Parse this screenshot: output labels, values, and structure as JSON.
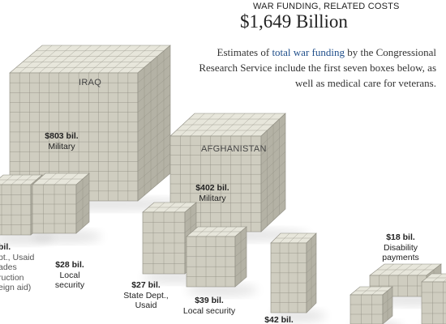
{
  "header": {
    "kicker": "WAR FUNDING, RELATED COSTS",
    "total": "$1,649 Billion",
    "desc_before": "Estimates of ",
    "desc_link": "total war funding",
    "desc_after": " by the Congressional Research Service include the first seven boxes below, as well as medical care for veterans."
  },
  "regions": {
    "iraq": "IRAQ",
    "afghanistan": "AFGHANISTAN"
  },
  "boxes": [
    {
      "id": "iraq-military",
      "amount": "$803 bil.",
      "lines": [
        "Military"
      ]
    },
    {
      "id": "afghan-military",
      "amount": "$402 bil.",
      "lines": [
        "Military"
      ]
    },
    {
      "id": "iraq-state",
      "amount": "bil.",
      "lines": [
        "pt., Usaid",
        "ades",
        "ruction",
        "eign aid)"
      ]
    },
    {
      "id": "iraq-local-security",
      "amount": "$28 bil.",
      "lines": [
        "Local",
        "security"
      ]
    },
    {
      "id": "afghan-state",
      "amount": "$27 bil.",
      "lines": [
        "State Dept.,",
        "Usaid"
      ]
    },
    {
      "id": "afghan-local-security",
      "amount": "$39 bil.",
      "lines": [
        "Local security"
      ]
    },
    {
      "id": "afghan-other",
      "amount": "$42 bil.",
      "lines": []
    },
    {
      "id": "disability",
      "amount": "$18 bil.",
      "lines": [
        "Disability",
        "payments"
      ]
    }
  ],
  "colors": {
    "cube_top": "#e7e6db",
    "cube_left": "#cfcdc0",
    "cube_right": "#b4b2a5",
    "grid_line": "#8e8c80",
    "link": "#1f4e8a"
  }
}
